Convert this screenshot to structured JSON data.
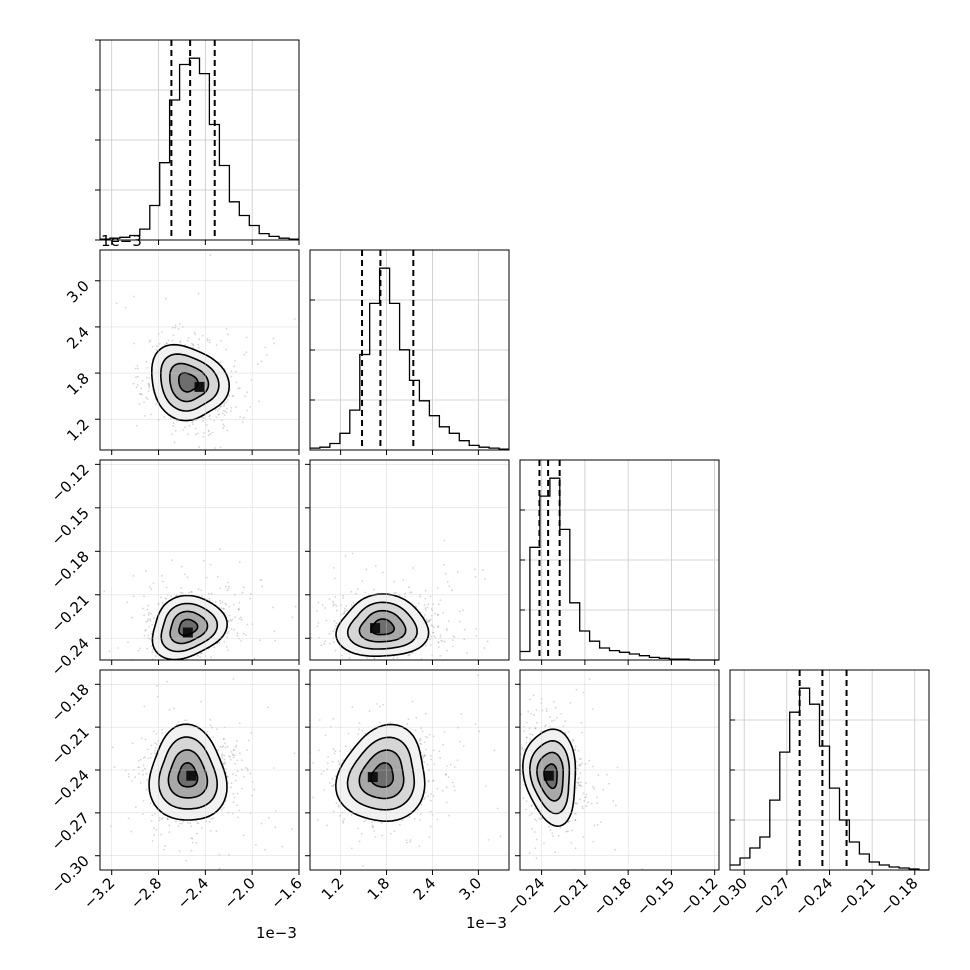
{
  "chart_data": {
    "type": "corner",
    "title": "",
    "parameters": [
      {
        "key": "p0",
        "range": [
          -3.3,
          -1.6
        ],
        "ticks": [
          -3.2,
          -2.8,
          -2.4,
          -2.0,
          -1.6
        ],
        "tick_labels": [
          "−3.2",
          "−2.8",
          "−2.4",
          "−2.0",
          "−1.6"
        ],
        "offset_text": "1e−3",
        "quantiles": [
          -2.69,
          -2.53,
          -2.32
        ]
      },
      {
        "key": "p1",
        "range": [
          0.8,
          3.4
        ],
        "ticks": [
          1.2,
          1.8,
          2.4,
          3.0
        ],
        "tick_labels": [
          "1.2",
          "1.8",
          "2.4",
          "3.0"
        ],
        "offset_text": "1e−3",
        "quantiles": [
          1.48,
          1.72,
          2.15
        ]
      },
      {
        "key": "p2",
        "range": [
          -0.255,
          -0.117
        ],
        "ticks": [
          -0.24,
          -0.21,
          -0.18,
          -0.15,
          -0.12
        ],
        "tick_labels": [
          "−0.24",
          "−0.21",
          "−0.18",
          "−0.15",
          "−0.12"
        ],
        "quantiles": [
          -0.2415,
          -0.2355,
          -0.2275
        ]
      },
      {
        "key": "p3",
        "range": [
          -0.31,
          -0.17
        ],
        "ticks": [
          -0.3,
          -0.27,
          -0.24,
          -0.21,
          -0.18
        ],
        "tick_labels": [
          "−0.30",
          "−0.27",
          "−0.24",
          "−0.21",
          "−0.18"
        ],
        "quantiles": [
          -0.261,
          -0.245,
          -0.228
        ]
      }
    ],
    "histograms": [
      {
        "param": 0,
        "bin_edges": [
          -3.3,
          -1.6
        ],
        "counts": [
          1,
          2,
          3,
          5,
          12,
          38,
          85,
          154,
          193,
          200,
          183,
          127,
          82,
          42,
          27,
          16,
          7,
          4,
          2,
          1
        ]
      },
      {
        "param": 1,
        "bin_edges": [
          0.8,
          3.4
        ],
        "counts": [
          2,
          3,
          7,
          18,
          43,
          103,
          158,
          196,
          158,
          108,
          75,
          53,
          37,
          25,
          18,
          10,
          5,
          3,
          2,
          1
        ]
      },
      {
        "param": 2,
        "bin_edges": [
          -0.255,
          -0.117
        ],
        "counts": [
          10,
          132,
          192,
          213,
          153,
          67,
          34,
          22,
          14,
          11,
          9,
          7,
          5,
          3,
          2,
          1,
          1,
          0,
          0,
          0
        ]
      },
      {
        "param": 3,
        "bin_edges": [
          -0.31,
          -0.17
        ],
        "counts": [
          5,
          12,
          22,
          33,
          70,
          118,
          158,
          182,
          166,
          124,
          82,
          50,
          28,
          16,
          8,
          5,
          3,
          2,
          1,
          0
        ]
      }
    ],
    "pairs": [
      {
        "x": 0,
        "y": 1,
        "mean": [
          -2.55,
          1.68
        ],
        "sd": [
          0.16,
          0.25
        ],
        "rho": -0.2,
        "mode": [
          -2.45,
          1.62
        ]
      },
      {
        "x": 0,
        "y": 2,
        "mean": [
          -2.55,
          -0.2325
        ],
        "sd": [
          0.16,
          0.0105
        ],
        "rho": 0.1,
        "mode": [
          -2.55,
          -0.236
        ]
      },
      {
        "x": 1,
        "y": 2,
        "mean": [
          1.75,
          -0.2325
        ],
        "sd": [
          0.3,
          0.0105
        ],
        "rho": -0.05,
        "mode": [
          1.65,
          -0.233
        ]
      },
      {
        "x": 0,
        "y": 3,
        "mean": [
          -2.55,
          -0.244
        ],
        "sd": [
          0.17,
          0.016
        ],
        "rho": -0.05,
        "mode": [
          -2.52,
          -0.244
        ]
      },
      {
        "x": 1,
        "y": 3,
        "mean": [
          1.75,
          -0.244
        ],
        "sd": [
          0.3,
          0.016
        ],
        "rho": 0.1,
        "mode": [
          1.62,
          -0.245
        ]
      },
      {
        "x": 2,
        "y": 3,
        "mean": [
          -0.2335,
          -0.244
        ],
        "sd": [
          0.0095,
          0.016
        ],
        "rho": -0.15,
        "mode": [
          -0.235,
          -0.244
        ]
      }
    ],
    "contour_levels_sigma": [
      0.5,
      1.0,
      1.5,
      2.0
    ],
    "grid": true
  }
}
